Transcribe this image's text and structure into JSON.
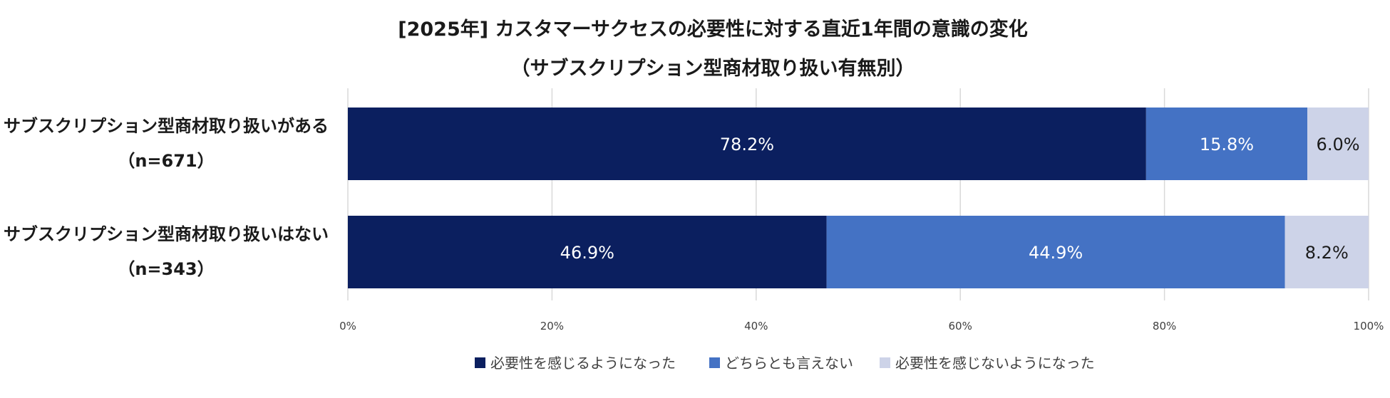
{
  "chart_data": {
    "type": "bar",
    "orientation": "horizontal",
    "stacked": true,
    "title": "[2025年] カスタマーサクセスの必要性に対する直近1年間の意識の変化",
    "subtitle": "（サブスクリプション型商材取り扱い有無別）",
    "categories": [
      {
        "label": "サブスクリプション型商材取り扱いがある",
        "n": "（n=671）"
      },
      {
        "label": "サブスクリプション型商材取り扱いはない",
        "n": "（n=343）"
      }
    ],
    "series": [
      {
        "name": "必要性を感じるようになった",
        "color": "#0b1f5f",
        "label_color": "#ffffff",
        "values": [
          78.2,
          46.9
        ],
        "labels": [
          "78.2%",
          "46.9%"
        ]
      },
      {
        "name": "どちらとも言えない",
        "color": "#4472c4",
        "label_color": "#ffffff",
        "values": [
          15.8,
          44.9
        ],
        "labels": [
          "15.8%",
          "44.9%"
        ]
      },
      {
        "name": "必要性を感じないようになった",
        "color": "#cdd3e8",
        "label_color": "#1a1a1a",
        "values": [
          6.0,
          8.2
        ],
        "labels": [
          "6.0%",
          "8.2%"
        ]
      }
    ],
    "x_ticks": [
      "0%",
      "20%",
      "40%",
      "60%",
      "80%",
      "100%"
    ],
    "xlim": [
      0,
      100
    ],
    "grid": true,
    "legend_position": "bottom"
  }
}
